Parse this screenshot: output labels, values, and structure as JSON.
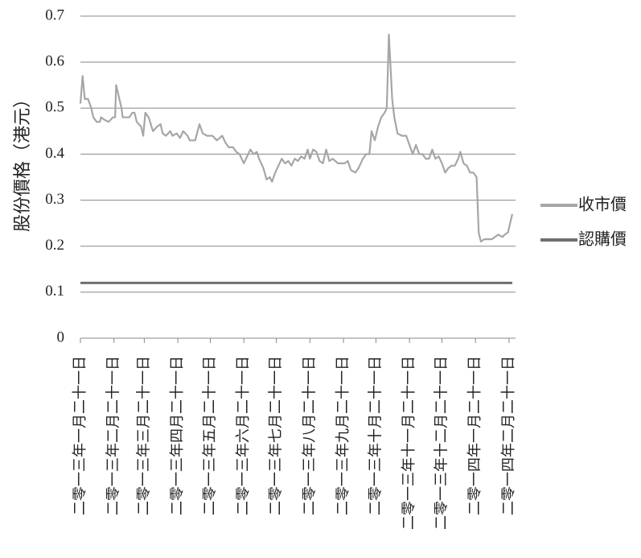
{
  "chart_data": {
    "type": "line",
    "y_label": "股份價格（港元）",
    "x": [
      "2013-01-21",
      "2013-01-23",
      "2013-01-25",
      "2013-01-28",
      "2013-01-31",
      "2013-02-02",
      "2013-02-05",
      "2013-02-08",
      "2013-02-09",
      "2013-02-12",
      "2013-02-16",
      "2013-02-20",
      "2013-02-22",
      "2013-02-23",
      "2013-02-26",
      "2013-02-28",
      "2013-03-01",
      "2013-03-04",
      "2013-03-07",
      "2013-03-10",
      "2013-03-12",
      "2013-03-14",
      "2013-03-18",
      "2013-03-20",
      "2013-03-22",
      "2013-03-25",
      "2013-03-29",
      "2013-04-02",
      "2013-04-05",
      "2013-04-07",
      "2013-04-10",
      "2013-04-14",
      "2013-04-16",
      "2013-04-20",
      "2013-04-23",
      "2013-04-26",
      "2013-04-30",
      "2013-05-02",
      "2013-05-07",
      "2013-05-11",
      "2013-05-14",
      "2013-05-18",
      "2013-05-23",
      "2013-05-27",
      "2013-06-01",
      "2013-06-04",
      "2013-06-07",
      "2013-06-11",
      "2013-06-14",
      "2013-06-17",
      "2013-06-21",
      "2013-06-24",
      "2013-06-27",
      "2013-06-30",
      "2013-07-03",
      "2013-07-05",
      "2013-07-09",
      "2013-07-12",
      "2013-07-15",
      "2013-07-17",
      "2013-07-20",
      "2013-07-23",
      "2013-07-26",
      "2013-07-29",
      "2013-08-01",
      "2013-08-04",
      "2013-08-07",
      "2013-08-10",
      "2013-08-13",
      "2013-08-16",
      "2013-08-19",
      "2013-08-21",
      "2013-08-24",
      "2013-08-27",
      "2013-08-30",
      "2013-09-02",
      "2013-09-05",
      "2013-09-08",
      "2013-09-11",
      "2013-09-16",
      "2013-09-22",
      "2013-09-25",
      "2013-09-28",
      "2013-10-02",
      "2013-10-05",
      "2013-10-09",
      "2013-10-12",
      "2013-10-15",
      "2013-10-17",
      "2013-10-20",
      "2013-10-23",
      "2013-10-26",
      "2013-10-29",
      "2013-10-31",
      "2013-11-02",
      "2013-11-04",
      "2013-11-05",
      "2013-11-07",
      "2013-11-10",
      "2013-11-14",
      "2013-11-18",
      "2013-11-21",
      "2013-11-24",
      "2013-11-27",
      "2013-11-30",
      "2013-12-03",
      "2013-12-06",
      "2013-12-09",
      "2013-12-12",
      "2013-12-15",
      "2013-12-18",
      "2013-12-21",
      "2013-12-24",
      "2013-12-27",
      "2013-12-30",
      "2014-01-02",
      "2014-01-05",
      "2014-01-07",
      "2014-01-10",
      "2014-01-13",
      "2014-01-16",
      "2014-01-19",
      "2014-01-22",
      "2014-01-24",
      "2014-01-26",
      "2014-01-29",
      "2014-02-01",
      "2014-02-05",
      "2014-02-08",
      "2014-02-11",
      "2014-02-15",
      "2014-02-17",
      "2014-02-20",
      "2014-02-24"
    ],
    "series": [
      {
        "name": "收市價",
        "color": "#a6a6a6",
        "values": [
          0.51,
          0.57,
          0.52,
          0.52,
          0.5,
          0.48,
          0.47,
          0.47,
          0.48,
          0.475,
          0.47,
          0.48,
          0.48,
          0.55,
          0.52,
          0.5,
          0.48,
          0.48,
          0.48,
          0.49,
          0.49,
          0.47,
          0.46,
          0.44,
          0.49,
          0.48,
          0.45,
          0.46,
          0.465,
          0.445,
          0.44,
          0.45,
          0.44,
          0.445,
          0.435,
          0.45,
          0.44,
          0.43,
          0.43,
          0.465,
          0.445,
          0.44,
          0.44,
          0.43,
          0.44,
          0.425,
          0.415,
          0.415,
          0.405,
          0.4,
          0.38,
          0.395,
          0.41,
          0.4,
          0.405,
          0.39,
          0.37,
          0.345,
          0.35,
          0.34,
          0.36,
          0.375,
          0.39,
          0.38,
          0.385,
          0.375,
          0.39,
          0.385,
          0.395,
          0.39,
          0.41,
          0.39,
          0.41,
          0.405,
          0.385,
          0.38,
          0.41,
          0.385,
          0.39,
          0.38,
          0.38,
          0.385,
          0.365,
          0.36,
          0.37,
          0.39,
          0.4,
          0.4,
          0.45,
          0.43,
          0.46,
          0.48,
          0.49,
          0.5,
          0.66,
          0.57,
          0.52,
          0.48,
          0.445,
          0.44,
          0.44,
          0.42,
          0.4,
          0.42,
          0.4,
          0.4,
          0.39,
          0.39,
          0.41,
          0.39,
          0.395,
          0.38,
          0.36,
          0.37,
          0.375,
          0.375,
          0.39,
          0.405,
          0.38,
          0.375,
          0.36,
          0.36,
          0.35,
          0.23,
          0.21,
          0.215,
          0.215,
          0.215,
          0.22,
          0.225,
          0.22,
          0.225,
          0.23,
          0.27
        ]
      },
      {
        "name": "認購價",
        "color": "#6f6f6f",
        "x": [
          "2013-01-21",
          "2014-02-24"
        ],
        "values": [
          0.12,
          0.12
        ]
      }
    ],
    "xticks": [
      {
        "value": "2013-01-21",
        "label": "二零一三年一月二十一日"
      },
      {
        "value": "2013-02-21",
        "label": "二零一三年二月二十一日"
      },
      {
        "value": "2013-03-21",
        "label": "二零一三年三月二十一日"
      },
      {
        "value": "2013-04-21",
        "label": "二零一三年四月二十一日"
      },
      {
        "value": "2013-05-21",
        "label": "二零一三年五月二十一日"
      },
      {
        "value": "2013-06-21",
        "label": "二零一三年六月二十一日"
      },
      {
        "value": "2013-07-21",
        "label": "二零一三年七月二十一日"
      },
      {
        "value": "2013-08-21",
        "label": "二零一三年八月二十一日"
      },
      {
        "value": "2013-09-21",
        "label": "二零一三年九月二十一日"
      },
      {
        "value": "2013-10-21",
        "label": "二零一三年十月二十一日"
      },
      {
        "value": "2013-11-21",
        "label": "二零一三年十一月二十一日"
      },
      {
        "value": "2013-12-21",
        "label": "二零一三年十二月二十一日"
      },
      {
        "value": "2014-01-21",
        "label": "二零一四年一月二十一日"
      },
      {
        "value": "2014-02-21",
        "label": "二零一四年二月二十一日"
      }
    ],
    "xlim": [
      "2013-01-21",
      "2014-02-27"
    ],
    "ylim": [
      0,
      0.7
    ],
    "yticks": [
      0,
      0.1,
      0.2,
      0.3,
      0.4,
      0.5,
      0.6,
      0.7
    ],
    "grid": true,
    "legend": "right"
  }
}
